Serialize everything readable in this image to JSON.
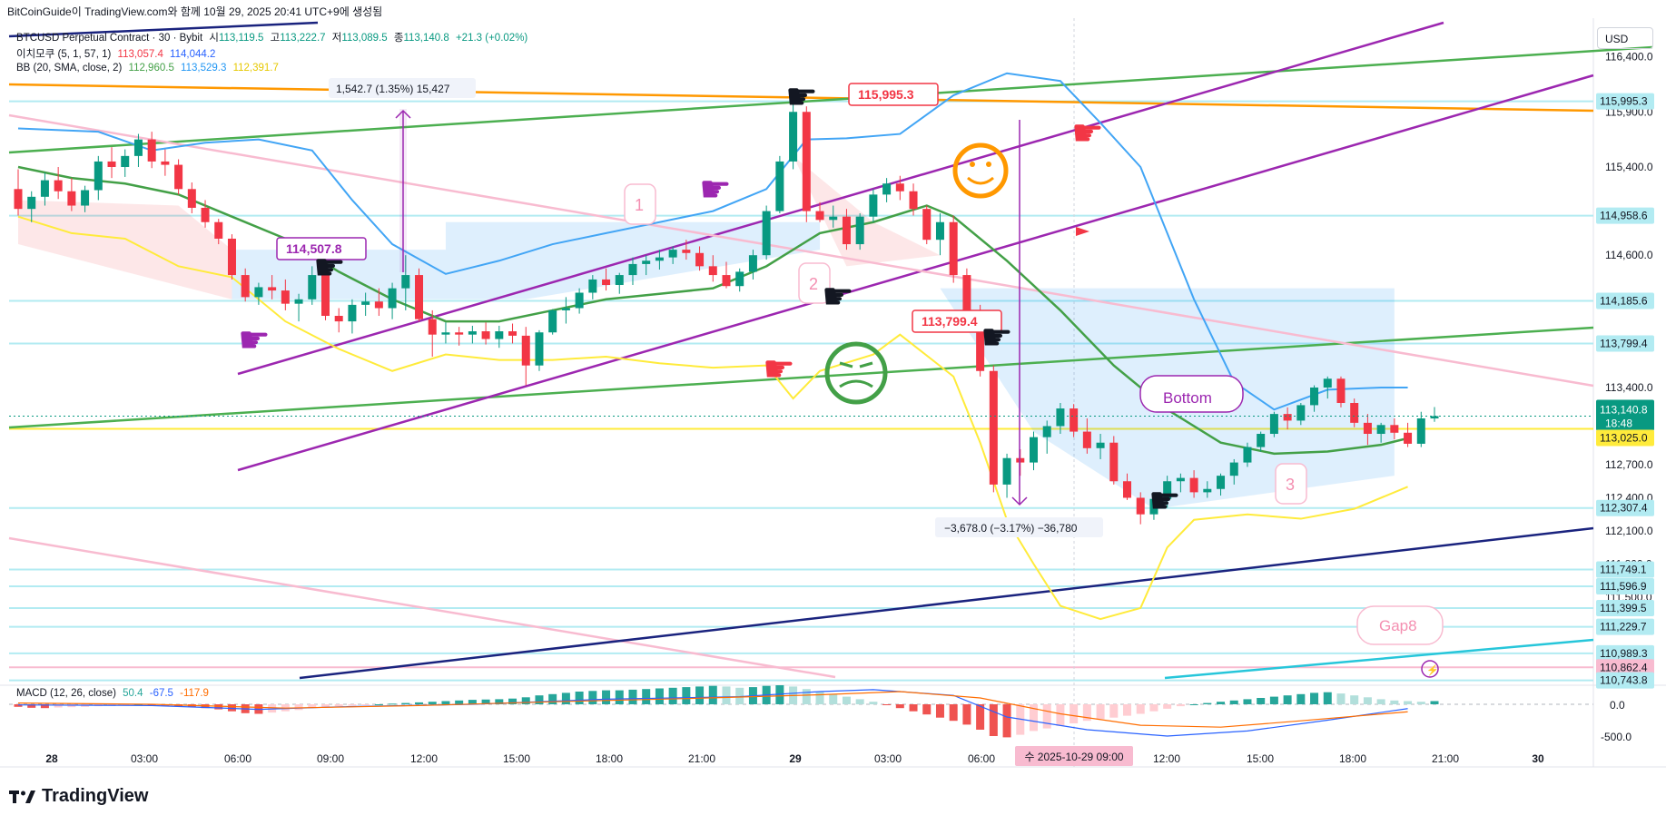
{
  "header": {
    "caption": "BitCoinGuide이 TradingView.com와 함께 10월 29, 2025 20:41 UTC+9에 생성됨"
  },
  "currency": "USD",
  "legend": {
    "symbol": "BTCUSD Perpetual Contract · 30 · Bybit",
    "o_label": "시",
    "o": "113,119.5",
    "h_label": "고",
    "h": "113,222.7",
    "l_label": "저",
    "l": "113,089.5",
    "c_label": "종",
    "c": "113,140.8",
    "chg": "+21.3 (+0.02%)",
    "ichimoku_name": "이치모쿠 (5, 1, 57, 1)",
    "ichimoku_v1": "113,057.4",
    "ichimoku_v2": "114,044.2",
    "bb_name": "BB (20, SMA, close, 2)",
    "bb_basis": "112,960.5",
    "bb_upper": "113,529.3",
    "bb_lower": "112,391.7",
    "macd_name": "MACD (12, 26, close)",
    "macd_hist": "50.4",
    "macd_line": "-67.5",
    "macd_signal": "-117.9"
  },
  "price_axis": {
    "ticks": [
      "116,400.0",
      "115,900.0",
      "115,400.0",
      "114,600.0",
      "113,400.0",
      "112,700.0",
      "112,400.0",
      "112,100.0",
      "111,800.0",
      "111,500.0"
    ],
    "badges": [
      {
        "label": "115,995.3",
        "value": 115995.3,
        "bg": "#b2ebf2"
      },
      {
        "label": "114,958.6",
        "value": 114958.6,
        "bg": "#b2ebf2"
      },
      {
        "label": "114,185.6",
        "value": 114185.6,
        "bg": "#b2ebf2"
      },
      {
        "label": "113,799.4",
        "value": 113799.4,
        "bg": "#b2ebf2"
      },
      {
        "label": "112,307.4",
        "value": 112307.4,
        "bg": "#b2ebf2"
      },
      {
        "label": "111,749.1",
        "value": 111749.1,
        "bg": "#b2ebf2"
      },
      {
        "label": "111,596.9",
        "value": 111596.9,
        "bg": "#b2ebf2"
      },
      {
        "label": "111,399.5",
        "value": 111399.5,
        "bg": "#b2ebf2"
      },
      {
        "label": "111,229.7",
        "value": 111229.7,
        "bg": "#b2ebf2"
      },
      {
        "label": "110,989.3",
        "value": 110989.3,
        "bg": "#b2ebf2"
      },
      {
        "label": "110,862.4",
        "value": 110862.4,
        "bg": "#f8bbd0"
      },
      {
        "label": "110,743.8",
        "value": 110743.8,
        "bg": "#b2ebf2"
      }
    ],
    "last_price": "113,140.8",
    "countdown": "18:48",
    "yellow_badge": "113,025.0",
    "macd_ticks": [
      "0.0",
      "-500.0"
    ]
  },
  "time_axis": {
    "labels": [
      "28",
      "03:00",
      "06:00",
      "09:00",
      "12:00",
      "15:00",
      "18:00",
      "21:00",
      "29",
      "03:00",
      "06:00",
      "09:00",
      "12:00",
      "15:00",
      "18:00",
      "21:00",
      "30"
    ],
    "crosshair_label": "수 2025-10-29   09:00"
  },
  "annotations": {
    "measure_up": "1,542.7 (1.35%) 15,427",
    "measure_down": "−3,678.0 (−3.17%) −36,780",
    "callout_1": "114,507.8",
    "callout_2": "115,995.3",
    "callout_3": "113,799.4",
    "bottom": "Bottom",
    "gap": "Gap8",
    "num1": "1",
    "num2": "2",
    "num3": "3"
  },
  "footer": {
    "brand": "TradingView"
  },
  "chart_data": {
    "type": "candlestick",
    "instrument": "BTCUSD Perpetual Contract",
    "interval": "30",
    "exchange": "Bybit",
    "ylim": [
      110700,
      116750
    ],
    "candles": [
      [
        115200,
        115380,
        114960,
        115020
      ],
      [
        115020,
        115180,
        114900,
        115130
      ],
      [
        115130,
        115350,
        115050,
        115280
      ],
      [
        115280,
        115400,
        115110,
        115180
      ],
      [
        115180,
        115300,
        115000,
        115050
      ],
      [
        115050,
        115230,
        114990,
        115190
      ],
      [
        115190,
        115500,
        115100,
        115450
      ],
      [
        115450,
        115580,
        115300,
        115400
      ],
      [
        115400,
        115560,
        115310,
        115500
      ],
      [
        115500,
        115700,
        115400,
        115650
      ],
      [
        115650,
        115720,
        115390,
        115450
      ],
      [
        115450,
        115560,
        115320,
        115420
      ],
      [
        115420,
        115470,
        115150,
        115200
      ],
      [
        115200,
        115260,
        114980,
        115030
      ],
      [
        115030,
        115100,
        114850,
        114900
      ],
      [
        114900,
        114930,
        114700,
        114750
      ],
      [
        114750,
        114790,
        114380,
        114420
      ],
      [
        114420,
        114480,
        114180,
        114220
      ],
      [
        114220,
        114350,
        114150,
        114310
      ],
      [
        114310,
        114420,
        114200,
        114280
      ],
      [
        114280,
        114380,
        114100,
        114160
      ],
      [
        114160,
        114250,
        114000,
        114200
      ],
      [
        114200,
        114500,
        114150,
        114420
      ],
      [
        114420,
        114460,
        114010,
        114050
      ],
      [
        114050,
        114120,
        113900,
        114000
      ],
      [
        114000,
        114200,
        113890,
        114150
      ],
      [
        114150,
        114260,
        114050,
        114180
      ],
      [
        114180,
        114300,
        114050,
        114120
      ],
      [
        114120,
        114350,
        114020,
        114300
      ],
      [
        114300,
        114600,
        114100,
        114420
      ],
      [
        114420,
        114480,
        114000,
        114020
      ],
      [
        114020,
        114100,
        113680,
        113880
      ],
      [
        113880,
        113990,
        113800,
        113900
      ],
      [
        113900,
        113950,
        113780,
        113880
      ],
      [
        113880,
        113960,
        113800,
        113910
      ],
      [
        113910,
        113990,
        113790,
        113840
      ],
      [
        113840,
        113960,
        113760,
        113910
      ],
      [
        113910,
        113980,
        113800,
        113870
      ],
      [
        113870,
        113950,
        113420,
        113600
      ],
      [
        113600,
        113920,
        113550,
        113900
      ],
      [
        113900,
        114110,
        113880,
        114100
      ],
      [
        114100,
        114220,
        113980,
        114120
      ],
      [
        114120,
        114300,
        114070,
        114260
      ],
      [
        114260,
        114420,
        114200,
        114380
      ],
      [
        114380,
        114480,
        114280,
        114330
      ],
      [
        114330,
        114440,
        114250,
        114420
      ],
      [
        114420,
        114580,
        114330,
        114520
      ],
      [
        114520,
        114600,
        114420,
        114550
      ],
      [
        114550,
        114650,
        114470,
        114580
      ],
      [
        114580,
        114680,
        114520,
        114650
      ],
      [
        114650,
        114740,
        114560,
        114620
      ],
      [
        114620,
        114680,
        114460,
        114500
      ],
      [
        114500,
        114600,
        114360,
        114420
      ],
      [
        114420,
        114540,
        114300,
        114320
      ],
      [
        114320,
        114480,
        114270,
        114450
      ],
      [
        114450,
        114650,
        114380,
        114600
      ],
      [
        114600,
        115050,
        114560,
        115000
      ],
      [
        115000,
        115500,
        114980,
        115450
      ],
      [
        115450,
        115980,
        115380,
        115900
      ],
      [
        115900,
        115950,
        114900,
        115000
      ],
      [
        115000,
        115080,
        114900,
        114920
      ],
      [
        114920,
        115050,
        114850,
        114950
      ],
      [
        114950,
        115020,
        114650,
        114700
      ],
      [
        114700,
        114980,
        114650,
        114950
      ],
      [
        114950,
        115200,
        114900,
        115150
      ],
      [
        115150,
        115300,
        115080,
        115250
      ],
      [
        115250,
        115320,
        115100,
        115180
      ],
      [
        115180,
        115250,
        114960,
        115020
      ],
      [
        115020,
        115050,
        114700,
        114740
      ],
      [
        114740,
        114980,
        114600,
        114900
      ],
      [
        114900,
        114960,
        114350,
        114420
      ],
      [
        114420,
        114480,
        114050,
        114100
      ],
      [
        114100,
        114150,
        113500,
        113550
      ],
      [
        113550,
        113600,
        112450,
        112520
      ],
      [
        112520,
        112800,
        112400,
        112760
      ],
      [
        112760,
        112840,
        112600,
        112720
      ],
      [
        112720,
        113000,
        112650,
        112950
      ],
      [
        112950,
        113100,
        112800,
        113050
      ],
      [
        113050,
        113260,
        112980,
        113210
      ],
      [
        113210,
        113250,
        112950,
        113000
      ],
      [
        113000,
        113120,
        112800,
        112850
      ],
      [
        112850,
        112980,
        112750,
        112900
      ],
      [
        112900,
        112960,
        112520,
        112550
      ],
      [
        112550,
        112620,
        112380,
        112400
      ],
      [
        112400,
        112450,
        112160,
        112250
      ],
      [
        112250,
        112420,
        112200,
        112390
      ],
      [
        112390,
        112600,
        112310,
        112550
      ],
      [
        112550,
        112620,
        112450,
        112580
      ],
      [
        112580,
        112650,
        112400,
        112450
      ],
      [
        112450,
        112550,
        112400,
        112480
      ],
      [
        112480,
        112620,
        112420,
        112600
      ],
      [
        112600,
        112750,
        112520,
        112720
      ],
      [
        112720,
        112900,
        112680,
        112860
      ],
      [
        112860,
        113000,
        112820,
        112980
      ],
      [
        112980,
        113180,
        112950,
        113160
      ],
      [
        113160,
        113220,
        113020,
        113100
      ],
      [
        113100,
        113260,
        113060,
        113240
      ],
      [
        113240,
        113420,
        113180,
        113400
      ],
      [
        113400,
        113500,
        113300,
        113480
      ],
      [
        113480,
        113500,
        113220,
        113260
      ],
      [
        113260,
        113300,
        113040,
        113080
      ],
      [
        113080,
        113160,
        112880,
        112980
      ],
      [
        112980,
        113080,
        112900,
        113060
      ],
      [
        113060,
        113120,
        112930,
        112990
      ],
      [
        112990,
        113080,
        112860,
        112890
      ],
      [
        112890,
        113180,
        112860,
        113120
      ],
      [
        113119.5,
        113222.7,
        113089.5,
        113140.8
      ]
    ],
    "levels": [
      115995.3,
      114958.6,
      114185.6,
      113799.4,
      112307.4,
      111749.1,
      111596.9,
      111399.5,
      111229.7,
      110989.3,
      110862.4,
      110743.8
    ],
    "macd_hist": [
      -40,
      -55,
      -60,
      -50,
      -45,
      -40,
      -30,
      -20,
      -10,
      0,
      -10,
      -20,
      -30,
      -40,
      -60,
      -80,
      -110,
      -140,
      -150,
      -130,
      -110,
      -90,
      -60,
      -40,
      -30,
      -20,
      -10,
      0,
      10,
      20,
      30,
      40,
      50,
      60,
      70,
      75,
      80,
      90,
      110,
      140,
      160,
      180,
      200,
      210,
      220,
      220,
      230,
      240,
      250,
      260,
      270,
      280,
      290,
      280,
      260,
      270,
      290,
      300,
      280,
      240,
      200,
      160,
      120,
      80,
      40,
      -10,
      -60,
      -110,
      -160,
      -210,
      -260,
      -320,
      -400,
      -500,
      -520,
      -480,
      -420,
      -380,
      -340,
      -300,
      -260,
      -230,
      -210,
      -180,
      -150,
      -110,
      -70,
      -30,
      0,
      20,
      40,
      60,
      80,
      100,
      120,
      140,
      160,
      180,
      190,
      170,
      140,
      110,
      80,
      60,
      50,
      40,
      50.4
    ],
    "macd_line_range": [
      -500,
      250
    ]
  }
}
